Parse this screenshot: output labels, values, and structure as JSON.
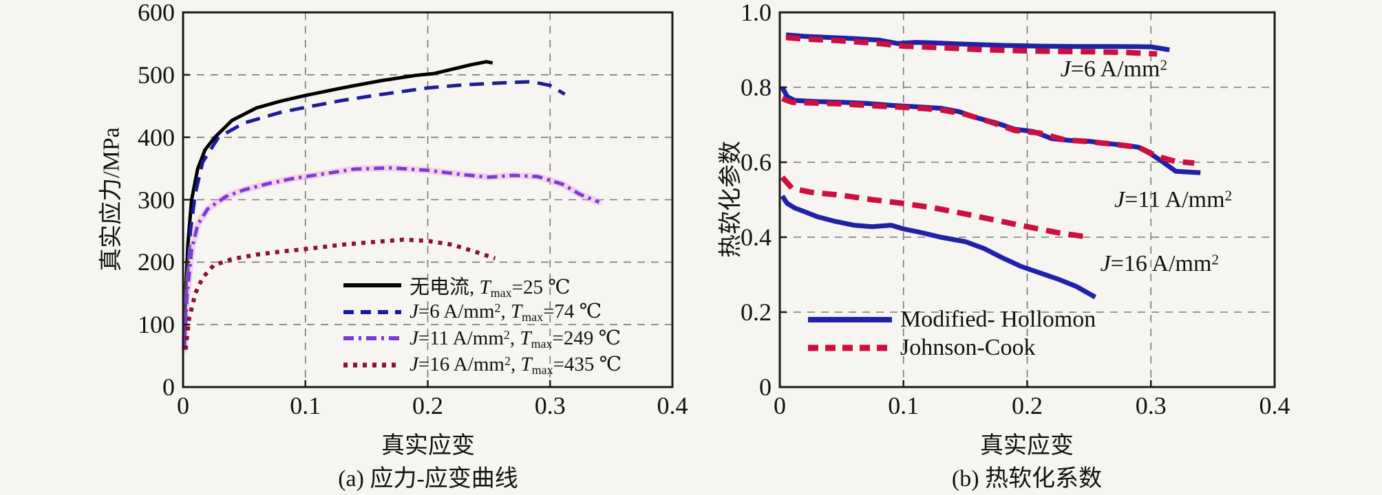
{
  "figure": {
    "background": "#f6f5f1",
    "grid_color": "#777777",
    "frame_color": "#1a1a1a"
  },
  "chart_data": [
    {
      "id": "a",
      "type": "line",
      "caption": "(a) 应力-应变曲线",
      "xlabel": "真实应变",
      "ylabel": "真实应力/MPa",
      "xlim": [
        0,
        0.4
      ],
      "ylim": [
        0,
        600
      ],
      "xticks": {
        "values": [
          0,
          0.1,
          0.2,
          0.3,
          0.4
        ],
        "labels": [
          "0",
          "0.1",
          "0.2",
          "0.3",
          "0.4"
        ]
      },
      "yticks": {
        "values": [
          0,
          100,
          200,
          300,
          400,
          500,
          600
        ],
        "labels": [
          "0",
          "100",
          "200",
          "300",
          "400",
          "500",
          "600"
        ]
      },
      "grid": "dashed",
      "legend_position": "lower-right-inside",
      "series": [
        {
          "name": "no-current-25C",
          "color": "#000000",
          "style": "solid",
          "width": 5,
          "label_segments": [
            {
              "t": "无电流, "
            },
            {
              "t": "T",
              "s": "i"
            },
            {
              "t": "max",
              "s": "sub"
            },
            {
              "t": "=25 ℃"
            }
          ],
          "x": [
            0.001,
            0.002,
            0.004,
            0.007,
            0.012,
            0.018,
            0.026,
            0.04,
            0.06,
            0.08,
            0.1,
            0.13,
            0.16,
            0.19,
            0.205,
            0.22,
            0.235,
            0.248,
            0.253
          ],
          "y": [
            70,
            150,
            230,
            300,
            350,
            380,
            400,
            427,
            447,
            458,
            467,
            479,
            490,
            499,
            502,
            509,
            516,
            521,
            519
          ]
        },
        {
          "name": "J6-74C",
          "color": "#1c1c96",
          "style": "dashed",
          "width": 5,
          "label_segments": [
            {
              "t": "J",
              "s": "i"
            },
            {
              "t": "=6 A/mm"
            },
            {
              "t": "2",
              "s": "sup"
            },
            {
              "t": ", "
            },
            {
              "t": "T",
              "s": "i"
            },
            {
              "t": "max",
              "s": "sub"
            },
            {
              "t": "=74 ℃"
            }
          ],
          "x": [
            0.001,
            0.003,
            0.006,
            0.01,
            0.016,
            0.029,
            0.05,
            0.08,
            0.1,
            0.13,
            0.16,
            0.2,
            0.23,
            0.26,
            0.285,
            0.3,
            0.312
          ],
          "y": [
            60,
            160,
            250,
            310,
            360,
            400,
            423,
            440,
            448,
            459,
            468,
            479,
            484,
            487,
            489,
            483,
            469
          ]
        },
        {
          "name": "J11-249C",
          "color": "#7a3bd6",
          "halo": "#f5a0dc",
          "style": "dashdot",
          "width": 5,
          "label_segments": [
            {
              "t": "J",
              "s": "i"
            },
            {
              "t": "=11 A/mm"
            },
            {
              "t": "2",
              "s": "sup"
            },
            {
              "t": ", "
            },
            {
              "t": "T",
              "s": "i"
            },
            {
              "t": "max",
              "s": "sub"
            },
            {
              "t": "=249 ℃"
            }
          ],
          "x": [
            0.001,
            0.003,
            0.007,
            0.012,
            0.02,
            0.035,
            0.05,
            0.07,
            0.09,
            0.11,
            0.14,
            0.17,
            0.2,
            0.23,
            0.25,
            0.27,
            0.29,
            0.31,
            0.325,
            0.34
          ],
          "y": [
            60,
            140,
            220,
            260,
            285,
            305,
            316,
            326,
            334,
            340,
            349,
            351,
            347,
            340,
            336,
            339,
            337,
            325,
            308,
            296
          ]
        },
        {
          "name": "J16-435C",
          "color": "#8c1230",
          "style": "dotted",
          "width": 6,
          "label_segments": [
            {
              "t": "J",
              "s": "i"
            },
            {
              "t": "=16 A/mm"
            },
            {
              "t": "2",
              "s": "sup"
            },
            {
              "t": ", "
            },
            {
              "t": "T",
              "s": "i"
            },
            {
              "t": "max",
              "s": "sub"
            },
            {
              "t": "=435 ℃"
            }
          ],
          "x": [
            0.002,
            0.005,
            0.01,
            0.016,
            0.025,
            0.04,
            0.06,
            0.08,
            0.1,
            0.13,
            0.16,
            0.18,
            0.2,
            0.22,
            0.24,
            0.255
          ],
          "y": [
            60,
            110,
            150,
            175,
            195,
            205,
            212,
            217,
            221,
            228,
            233,
            236,
            234,
            228,
            216,
            206
          ]
        }
      ]
    },
    {
      "id": "b",
      "type": "line",
      "caption": "(b) 热软化系数",
      "xlabel": "真实应变",
      "ylabel": "热软化参数",
      "xlim": [
        0,
        0.4
      ],
      "ylim": [
        0,
        1.0
      ],
      "xticks": {
        "values": [
          0,
          0.1,
          0.2,
          0.3,
          0.4
        ],
        "labels": [
          "0",
          "0.1",
          "0.2",
          "0.3",
          "0.4"
        ]
      },
      "yticks": {
        "values": [
          0,
          0.2,
          0.4,
          0.6,
          0.8,
          1.0
        ],
        "labels": [
          "0",
          "0.2",
          "0.4",
          "0.6",
          "0.8",
          "1.0"
        ]
      },
      "grid": "dashed",
      "legend_position": "lower-left-inside",
      "annotations": [
        {
          "x": 0.27,
          "y": 0.848,
          "segments": [
            {
              "t": "J",
              "s": "i"
            },
            {
              "t": "=6 A/mm"
            },
            {
              "t": "2",
              "s": "sup"
            }
          ]
        },
        {
          "x": 0.318,
          "y": 0.5,
          "segments": [
            {
              "t": "J",
              "s": "i"
            },
            {
              "t": "=11 A/mm"
            },
            {
              "t": "2",
              "s": "sup"
            }
          ]
        },
        {
          "x": 0.307,
          "y": 0.328,
          "segments": [
            {
              "t": "J",
              "s": "i"
            },
            {
              "t": "=16 A/mm"
            },
            {
              "t": "2",
              "s": "sup"
            }
          ]
        }
      ],
      "series": [
        {
          "name": "modified-hollomon-J6",
          "group": "Modified- Hollomon",
          "color": "#2121a6",
          "style": "solid",
          "width": 7,
          "x": [
            0.005,
            0.02,
            0.04,
            0.06,
            0.08,
            0.095,
            0.11,
            0.13,
            0.15,
            0.18,
            0.21,
            0.24,
            0.27,
            0.3,
            0.315
          ],
          "y": [
            0.94,
            0.936,
            0.933,
            0.93,
            0.926,
            0.917,
            0.92,
            0.918,
            0.915,
            0.912,
            0.91,
            0.909,
            0.909,
            0.908,
            0.9
          ]
        },
        {
          "name": "johnson-cook-J6",
          "group": "Johnson-Cook",
          "color": "#cc0f3f",
          "style": "dashed",
          "width": 8,
          "x": [
            0.005,
            0.02,
            0.05,
            0.08,
            0.1,
            0.13,
            0.16,
            0.19,
            0.22,
            0.25,
            0.28,
            0.305
          ],
          "y": [
            0.933,
            0.929,
            0.924,
            0.917,
            0.91,
            0.906,
            0.901,
            0.898,
            0.896,
            0.895,
            0.893,
            0.889
          ]
        },
        {
          "name": "modified-hollomon-J11",
          "group": "Modified- Hollomon",
          "color": "#2121a6",
          "style": "solid",
          "width": 7,
          "x": [
            0.002,
            0.006,
            0.012,
            0.03,
            0.05,
            0.07,
            0.09,
            0.11,
            0.13,
            0.145,
            0.16,
            0.175,
            0.19,
            0.205,
            0.22,
            0.235,
            0.25,
            0.265,
            0.28,
            0.29,
            0.3,
            0.31,
            0.32,
            0.34
          ],
          "y": [
            0.8,
            0.775,
            0.765,
            0.762,
            0.76,
            0.757,
            0.752,
            0.748,
            0.744,
            0.735,
            0.718,
            0.705,
            0.688,
            0.682,
            0.663,
            0.658,
            0.656,
            0.65,
            0.645,
            0.64,
            0.622,
            0.6,
            0.576,
            0.572
          ]
        },
        {
          "name": "johnson-cook-J11",
          "group": "Johnson-Cook",
          "color": "#cc0f3f",
          "style": "dashed",
          "width": 8,
          "x": [
            0.002,
            0.01,
            0.03,
            0.05,
            0.07,
            0.09,
            0.11,
            0.13,
            0.15,
            0.17,
            0.19,
            0.21,
            0.23,
            0.25,
            0.27,
            0.29,
            0.305,
            0.32,
            0.335
          ],
          "y": [
            0.77,
            0.76,
            0.758,
            0.756,
            0.752,
            0.748,
            0.745,
            0.74,
            0.728,
            0.708,
            0.685,
            0.678,
            0.66,
            0.655,
            0.648,
            0.64,
            0.616,
            0.602,
            0.598
          ]
        },
        {
          "name": "johnson-cook-J16",
          "group": "Johnson-Cook",
          "color": "#cc0f3f",
          "style": "dashed",
          "width": 8,
          "x": [
            0.002,
            0.01,
            0.025,
            0.05,
            0.075,
            0.1,
            0.125,
            0.15,
            0.175,
            0.2,
            0.225,
            0.25
          ],
          "y": [
            0.56,
            0.53,
            0.52,
            0.512,
            0.5,
            0.49,
            0.478,
            0.462,
            0.445,
            0.428,
            0.412,
            0.4
          ]
        },
        {
          "name": "modified-hollomon-J16",
          "group": "Modified- Hollomon",
          "color": "#2121a6",
          "style": "solid",
          "width": 7,
          "x": [
            0.002,
            0.006,
            0.012,
            0.02,
            0.03,
            0.045,
            0.06,
            0.075,
            0.09,
            0.1,
            0.115,
            0.13,
            0.15,
            0.165,
            0.18,
            0.195,
            0.21,
            0.225,
            0.24,
            0.255
          ],
          "y": [
            0.51,
            0.49,
            0.478,
            0.468,
            0.455,
            0.442,
            0.432,
            0.428,
            0.432,
            0.422,
            0.412,
            0.4,
            0.388,
            0.37,
            0.345,
            0.322,
            0.305,
            0.288,
            0.268,
            0.24
          ]
        }
      ],
      "legend": [
        {
          "label": "Modified- Hollomon",
          "color": "#2121a6",
          "style": "solid",
          "width": 7
        },
        {
          "label": "Johnson-Cook",
          "color": "#cc0f3f",
          "style": "dashed",
          "width": 8
        }
      ]
    }
  ]
}
